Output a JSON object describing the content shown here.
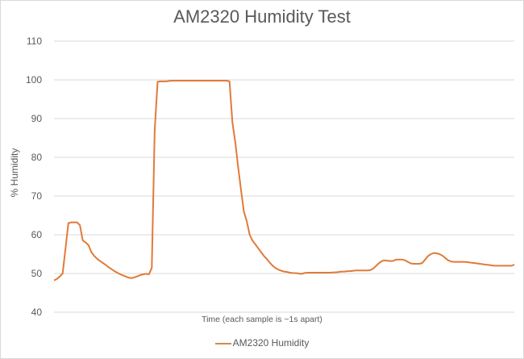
{
  "chart_data": {
    "type": "line",
    "title": "AM2320 Humidity Test",
    "xlabel": "Time (each sample is ~1s apart)",
    "ylabel": "% Humidity",
    "ylim": [
      40,
      110
    ],
    "yticks": [
      40,
      50,
      60,
      70,
      80,
      90,
      100,
      110
    ],
    "grid": true,
    "legend_position": "bottom",
    "series": [
      {
        "name": "AM2320 Humidity",
        "color": "#e07b39",
        "values": [
          48.2,
          48.6,
          49.2,
          50.0,
          56.5,
          63.0,
          63.2,
          63.2,
          63.2,
          62.5,
          58.5,
          58.0,
          57.3,
          55.5,
          54.5,
          53.8,
          53.2,
          52.7,
          52.2,
          51.6,
          51.1,
          50.6,
          50.2,
          49.8,
          49.5,
          49.2,
          48.9,
          48.8,
          49.0,
          49.3,
          49.6,
          49.8,
          49.9,
          49.8,
          51.5,
          87.0,
          99.5,
          99.6,
          99.6,
          99.6,
          99.7,
          99.8,
          99.8,
          99.8,
          99.8,
          99.8,
          99.8,
          99.8,
          99.8,
          99.8,
          99.8,
          99.8,
          99.8,
          99.8,
          99.8,
          99.8,
          99.8,
          99.8,
          99.8,
          99.8,
          99.8,
          99.6,
          89.0,
          84.0,
          77.5,
          71.5,
          66.0,
          63.5,
          60.0,
          58.5,
          57.5,
          56.5,
          55.5,
          54.5,
          53.7,
          52.8,
          52.0,
          51.4,
          51.0,
          50.7,
          50.5,
          50.4,
          50.2,
          50.1,
          50.1,
          50.0,
          49.9,
          50.1,
          50.2,
          50.2,
          50.2,
          50.2,
          50.2,
          50.2,
          50.2,
          50.2,
          50.2,
          50.3,
          50.3,
          50.4,
          50.5,
          50.5,
          50.6,
          50.6,
          50.7,
          50.8,
          50.8,
          50.8,
          50.8,
          50.8,
          50.9,
          51.3,
          52.0,
          52.7,
          53.2,
          53.4,
          53.3,
          53.2,
          53.3,
          53.6,
          53.6,
          53.6,
          53.4,
          53.0,
          52.6,
          52.5,
          52.5,
          52.5,
          52.7,
          53.6,
          54.5,
          55.0,
          55.3,
          55.2,
          55.0,
          54.6,
          54.0,
          53.4,
          53.1,
          53.0,
          53.0,
          53.0,
          53.0,
          53.0,
          52.9,
          52.8,
          52.7,
          52.6,
          52.5,
          52.4,
          52.3,
          52.2,
          52.1,
          52.0,
          52.0,
          52.0,
          52.0,
          52.0,
          52.0,
          52.0,
          52.3
        ]
      }
    ]
  },
  "chart": {
    "title": "AM2320 Humidity Test",
    "xlabel": "Time (each sample is ~1s apart)",
    "ylabel": "% Humidity",
    "legend_label": "AM2320 Humidity",
    "yticks": [
      "110",
      "100",
      "90",
      "80",
      "70",
      "60",
      "50",
      "40"
    ]
  }
}
